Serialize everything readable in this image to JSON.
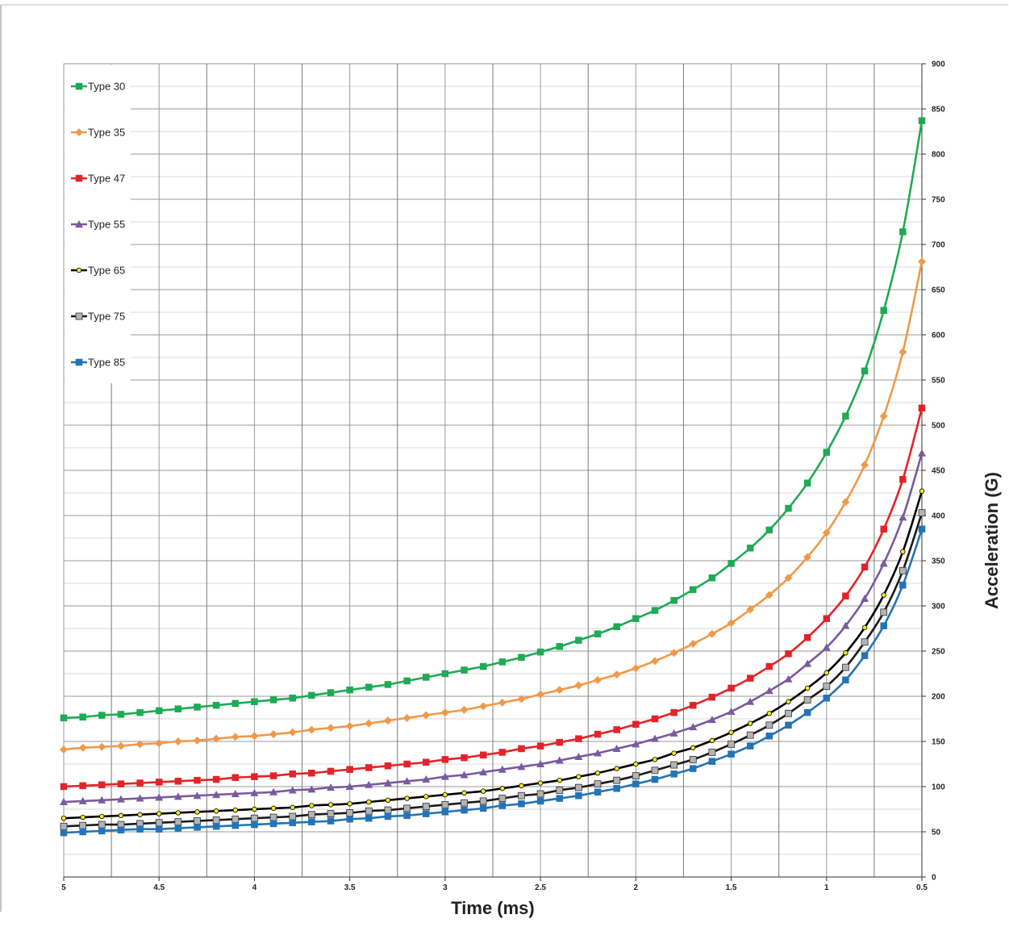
{
  "chart_data": {
    "type": "line",
    "title": "",
    "xlabel": "Time (ms)",
    "ylabel": "Acceleration (G)",
    "x_axis_reversed": true,
    "xlim": [
      0.5,
      5
    ],
    "ylim": [
      0,
      900
    ],
    "x_ticks": [
      5,
      4.5,
      4,
      3.5,
      3,
      2.5,
      2,
      1.5,
      1,
      0.5
    ],
    "x_tick_labels": [
      "5",
      "4.5",
      "4",
      "3.5",
      "3",
      "2.5",
      "2",
      "1.5",
      "1",
      "0.5"
    ],
    "y_ticks": [
      0,
      50,
      100,
      150,
      200,
      250,
      300,
      350,
      400,
      450,
      500,
      550,
      600,
      650,
      700,
      750,
      800,
      850,
      900
    ],
    "y_tick_labels": [
      "0",
      "50",
      "100",
      "150",
      "200",
      "250",
      "300",
      "350",
      "400",
      "450",
      "500",
      "550",
      "600",
      "650",
      "700",
      "750",
      "800",
      "850",
      "900"
    ],
    "y_axis_position": "right",
    "grid": true,
    "legend_position": "top-left",
    "x": [
      5,
      4.9,
      4.8,
      4.7,
      4.6,
      4.5,
      4.4,
      4.3,
      4.2,
      4.1,
      4,
      3.9,
      3.8,
      3.7,
      3.6,
      3.5,
      3.4,
      3.3,
      3.2,
      3.1,
      3,
      2.9,
      2.8,
      2.7,
      2.6,
      2.5,
      2.4,
      2.3,
      2.2,
      2.1,
      2,
      1.9,
      1.8,
      1.7,
      1.6,
      1.5,
      1.4,
      1.3,
      1.2,
      1.1,
      1,
      0.9,
      0.8,
      0.7,
      0.6,
      0.5
    ],
    "series": [
      {
        "name": "Type 30",
        "color": "#1faa55",
        "marker": "square",
        "values": [
          176,
          177,
          179,
          180,
          182,
          184,
          186,
          188,
          190,
          192,
          194,
          196,
          198,
          201,
          204,
          207,
          210,
          213,
          217,
          221,
          225,
          229,
          233,
          238,
          243,
          249,
          255,
          262,
          269,
          277,
          286,
          295,
          306,
          318,
          331,
          347,
          364,
          384,
          408,
          436,
          470,
          510,
          560,
          627,
          714,
          837
        ]
      },
      {
        "name": "Type 35",
        "color": "#f0994a",
        "marker": "diamond",
        "values": [
          141,
          143,
          144,
          145,
          147,
          148,
          150,
          151,
          153,
          155,
          156,
          158,
          160,
          163,
          165,
          167,
          170,
          173,
          176,
          179,
          182,
          185,
          189,
          193,
          197,
          202,
          207,
          212,
          218,
          224,
          231,
          239,
          248,
          258,
          269,
          281,
          296,
          312,
          331,
          354,
          381,
          415,
          456,
          510,
          581,
          681
        ]
      },
      {
        "name": "Type 47",
        "color": "#e2242a",
        "marker": "square",
        "values": [
          100,
          101,
          102,
          103,
          104,
          105,
          106,
          107,
          108,
          110,
          111,
          112,
          114,
          115,
          117,
          119,
          121,
          123,
          125,
          127,
          130,
          132,
          135,
          138,
          142,
          145,
          149,
          153,
          158,
          163,
          169,
          175,
          182,
          190,
          199,
          209,
          220,
          233,
          247,
          265,
          286,
          311,
          343,
          385,
          440,
          519
        ]
      },
      {
        "name": "Type 55",
        "color": "#7a5a9e",
        "marker": "triangle",
        "values": [
          83,
          84,
          85,
          86,
          87,
          88,
          89,
          90,
          91,
          92,
          93,
          94,
          96,
          97,
          99,
          100,
          102,
          104,
          106,
          108,
          111,
          113,
          116,
          119,
          122,
          125,
          129,
          133,
          137,
          142,
          147,
          153,
          159,
          166,
          174,
          183,
          194,
          206,
          219,
          236,
          254,
          278,
          308,
          347,
          398,
          469
        ]
      },
      {
        "name": "Type 65",
        "color": "#000000",
        "marker": "circle",
        "marker_fill": "#f2ec1f",
        "values": [
          65,
          66,
          67,
          68,
          69,
          70,
          71,
          72,
          73,
          74,
          75,
          76,
          77,
          79,
          80,
          81,
          83,
          85,
          87,
          89,
          91,
          93,
          95,
          98,
          101,
          104,
          107,
          111,
          115,
          120,
          125,
          130,
          137,
          143,
          151,
          160,
          170,
          181,
          194,
          209,
          226,
          248,
          276,
          312,
          360,
          427
        ]
      },
      {
        "name": "Type 75",
        "color": "#1a1a1a",
        "marker": "square",
        "marker_fill": "#b3b3b3",
        "values": [
          56,
          57,
          58,
          58,
          59,
          60,
          61,
          62,
          63,
          64,
          65,
          66,
          67,
          69,
          70,
          71,
          73,
          74,
          76,
          78,
          80,
          82,
          84,
          87,
          90,
          92,
          96,
          99,
          103,
          107,
          112,
          118,
          124,
          130,
          138,
          147,
          157,
          168,
          181,
          196,
          211,
          232,
          260,
          293,
          339,
          403
        ]
      },
      {
        "name": "Type 85",
        "color": "#2473b6",
        "marker": "square",
        "values": [
          49,
          50,
          51,
          52,
          53,
          53,
          54,
          55,
          56,
          57,
          58,
          59,
          60,
          61,
          62,
          64,
          65,
          67,
          68,
          70,
          72,
          74,
          76,
          79,
          81,
          84,
          87,
          90,
          94,
          98,
          103,
          108,
          114,
          120,
          128,
          136,
          145,
          156,
          168,
          182,
          198,
          218,
          245,
          278,
          323,
          385
        ]
      }
    ]
  }
}
